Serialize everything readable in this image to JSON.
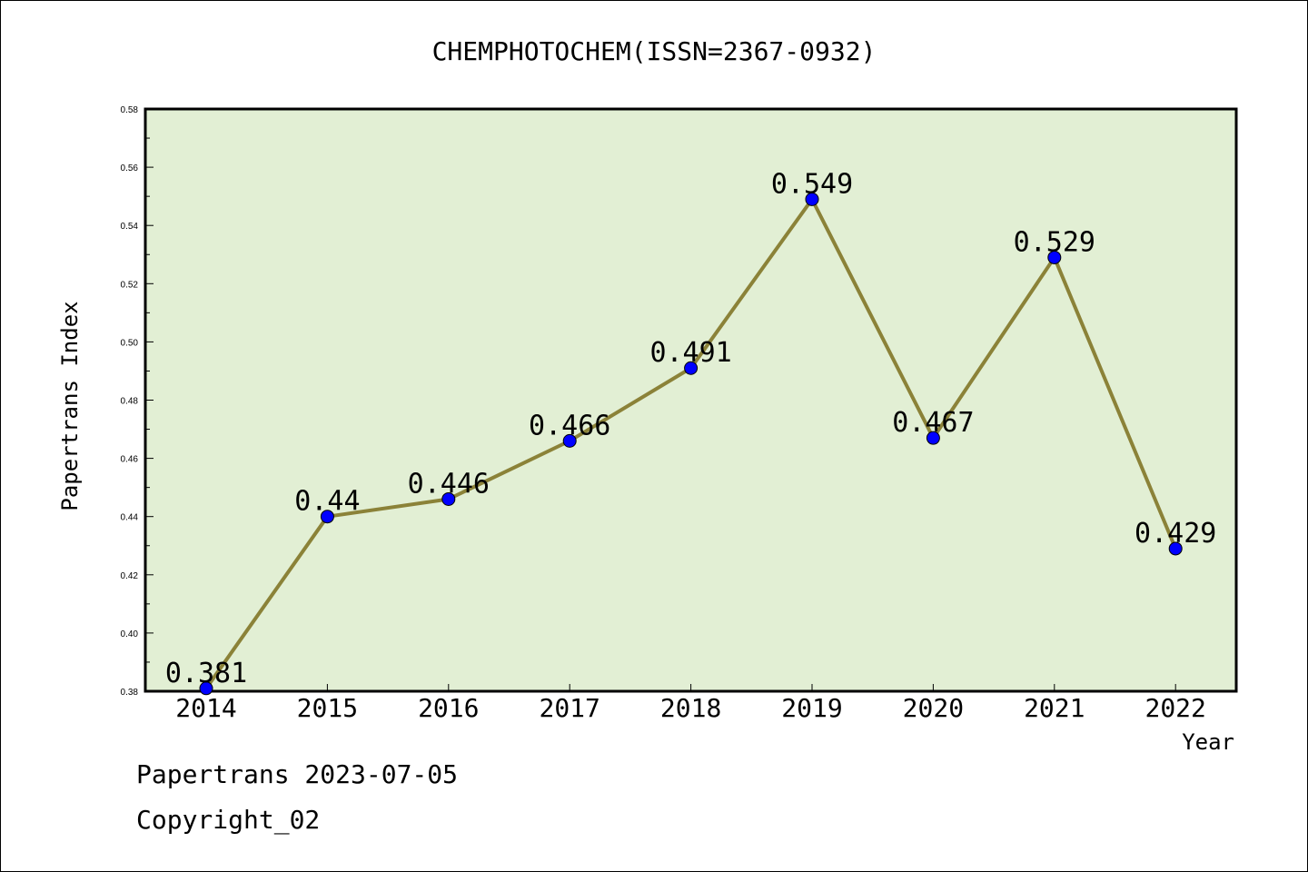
{
  "chart_data": {
    "type": "line",
    "title": "CHEMPHOTOCHEM(ISSN=2367-0932)",
    "xlabel": "Year",
    "ylabel": "Papertrans Index",
    "categories": [
      "2014",
      "2015",
      "2016",
      "2017",
      "2018",
      "2019",
      "2020",
      "2021",
      "2022"
    ],
    "series": [
      {
        "values": [
          0.381,
          0.44,
          0.446,
          0.466,
          0.491,
          0.549,
          0.467,
          0.529,
          0.429
        ],
        "data_labels": [
          "0.381",
          "0.44",
          "0.446",
          "0.466",
          "0.491",
          "0.549",
          "0.467",
          "0.529",
          "0.429"
        ]
      }
    ],
    "ylim": [
      0.38,
      0.58
    ],
    "yticks": [
      "0.38",
      "0.40",
      "0.42",
      "0.44",
      "0.46",
      "0.48",
      "0.50",
      "0.52",
      "0.54",
      "0.56",
      "0.58"
    ],
    "grid": false,
    "colors": {
      "plot_background": "#e2efd4",
      "line": "#8b8238",
      "marker": "#0000ff"
    }
  },
  "footer": {
    "line1": "Papertrans 2023-07-05",
    "line2": "Copyright_02"
  }
}
